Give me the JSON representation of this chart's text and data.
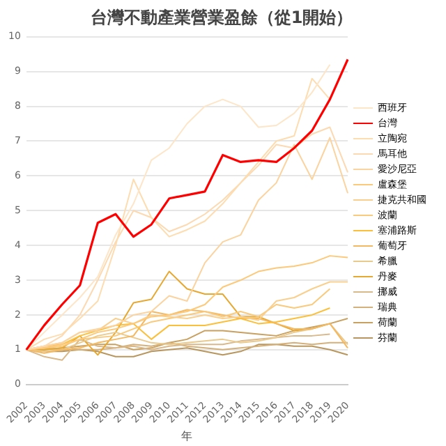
{
  "chart_data": {
    "type": "line",
    "title": "台灣不動產業營業盈餘（從1開始）",
    "xlabel": "年",
    "categories": [
      "2002",
      "2003",
      "2004",
      "2005",
      "2006",
      "2007",
      "2008",
      "2009",
      "2010",
      "2011",
      "2012",
      "2013",
      "2014",
      "2015",
      "2016",
      "2017",
      "2018",
      "2019",
      "2020"
    ],
    "ylim": [
      0,
      10
    ],
    "yticks": [
      0,
      1,
      2,
      3,
      4,
      5,
      6,
      7,
      8,
      9,
      10
    ],
    "grid": "y",
    "legend": "right",
    "marker": "none",
    "series": [
      {
        "name": "西班牙",
        "color": "#fde6c8",
        "values": [
          1,
          1.5,
          2,
          2.5,
          3.1,
          4.3,
          5.2,
          6.45,
          6.8,
          7.5,
          8,
          8.2,
          8,
          7.4,
          7.45,
          7.8,
          8.4,
          9.2,
          null
        ]
      },
      {
        "name": "台灣",
        "color": "#ff0000",
        "values": [
          1,
          1.7,
          2.3,
          2.85,
          4.65,
          4.9,
          4.25,
          4.6,
          5.35,
          5.45,
          5.55,
          6.6,
          6.4,
          6.45,
          6.4,
          6.8,
          7.3,
          8.2,
          9.35
        ]
      },
      {
        "name": "立陶宛",
        "color": "#fddcb0",
        "values": [
          1,
          1.3,
          1.45,
          1.9,
          2.4,
          4,
          5.9,
          4.8,
          4.25,
          4.45,
          4.7,
          5.2,
          5.8,
          6.4,
          7,
          7.15,
          8.8,
          8.2,
          null
        ]
      },
      {
        "name": "馬耳他",
        "color": "#fcd9b0",
        "values": [
          1,
          1.1,
          1.4,
          2,
          3,
          4.1,
          5,
          4.8,
          4.4,
          4.6,
          4.9,
          5.3,
          5.8,
          6.3,
          6.9,
          6.8,
          7.2,
          7.4,
          6.1
        ]
      },
      {
        "name": "愛沙尼亞",
        "color": "#fbd39f",
        "values": [
          1,
          1.1,
          1.2,
          1.5,
          1.6,
          1.7,
          2,
          2.1,
          2.55,
          2.4,
          3.5,
          4.1,
          4.3,
          5.3,
          5.8,
          6.9,
          5.9,
          7.1,
          5.5
        ]
      },
      {
        "name": "盧森堡",
        "color": "#fcc97a",
        "values": [
          1,
          1.05,
          1.15,
          1.3,
          1.5,
          1.6,
          1.75,
          1.95,
          2,
          2.1,
          2.3,
          2.8,
          3,
          3.25,
          3.35,
          3.4,
          3.5,
          3.7,
          3.65
        ]
      },
      {
        "name": "捷克共和國",
        "color": "#f9cf8e",
        "values": [
          1,
          1.1,
          1.2,
          1.5,
          1.55,
          1.9,
          1.75,
          2,
          1.95,
          1.9,
          2,
          1.9,
          1.95,
          1.85,
          2.4,
          2.5,
          2.75,
          2.95,
          2.95
        ]
      },
      {
        "name": "波蘭",
        "color": "#f9c97c",
        "values": [
          1,
          1.05,
          1.1,
          1.3,
          1.35,
          1.4,
          1.6,
          1.8,
          1.9,
          2,
          2.1,
          1.95,
          2.1,
          1.95,
          2.3,
          2.2,
          2.3,
          2.75,
          null
        ]
      },
      {
        "name": "塞浦路斯",
        "color": "#fbbf3a",
        "values": [
          1,
          1.1,
          1.15,
          1.4,
          1.55,
          1.7,
          1.75,
          1.3,
          1.7,
          1.7,
          1.7,
          1.8,
          1.9,
          1.75,
          1.8,
          1.9,
          2,
          2.2,
          null
        ]
      },
      {
        "name": "葡萄牙",
        "color": "#f4b860",
        "values": [
          1,
          0.9,
          1,
          1.05,
          1.2,
          1.3,
          1.4,
          2.1,
          2,
          2.15,
          2.1,
          2,
          1.9,
          1.9,
          1.75,
          1.6,
          1.6,
          1.75,
          1.05
        ]
      },
      {
        "name": "希臘",
        "color": "#e9c98c",
        "values": [
          1,
          0.95,
          1,
          1.2,
          1.4,
          1.5,
          1.35,
          1.2,
          1.15,
          1.2,
          1.25,
          1.3,
          1.2,
          1.25,
          1.35,
          1.5,
          1.6,
          1.75,
          1.15
        ]
      },
      {
        "name": "丹麥",
        "color": "#e6a830",
        "values": [
          1,
          1,
          1.05,
          1.4,
          0.85,
          1.5,
          2.35,
          2.45,
          3.25,
          2.75,
          2.6,
          2.6,
          1.95,
          1.95,
          1.75,
          1.55,
          1.6,
          1.75,
          null
        ]
      },
      {
        "name": "挪威",
        "color": "#d9b88a",
        "values": [
          1,
          0.8,
          0.7,
          1.3,
          1.1,
          1.05,
          1.1,
          1,
          1.1,
          1.15,
          1.15,
          1.15,
          1.25,
          1.3,
          1.35,
          1.4,
          1.4,
          1.45,
          null
        ]
      },
      {
        "name": "瑞典",
        "color": "#d4b07a",
        "values": [
          1,
          1.05,
          1,
          1,
          1,
          1.05,
          1.15,
          1.1,
          1.2,
          1.1,
          1.05,
          1,
          1.05,
          1.1,
          1.15,
          1.2,
          1.15,
          1.2,
          1.2
        ]
      },
      {
        "name": "荷蘭",
        "color": "#c8a060",
        "values": [
          1,
          1,
          1.05,
          1.1,
          1.15,
          1.15,
          1,
          1.05,
          1.2,
          1.3,
          1.55,
          1.55,
          1.5,
          1.45,
          1.4,
          1.55,
          1.65,
          1.75,
          1.9
        ]
      },
      {
        "name": "芬蘭",
        "color": "#b8965e",
        "values": [
          1,
          0.95,
          0.95,
          1,
          0.95,
          0.8,
          0.8,
          0.95,
          1,
          1.05,
          0.95,
          0.85,
          0.95,
          1.15,
          1.15,
          1.1,
          1.1,
          1,
          0.85
        ]
      }
    ]
  }
}
